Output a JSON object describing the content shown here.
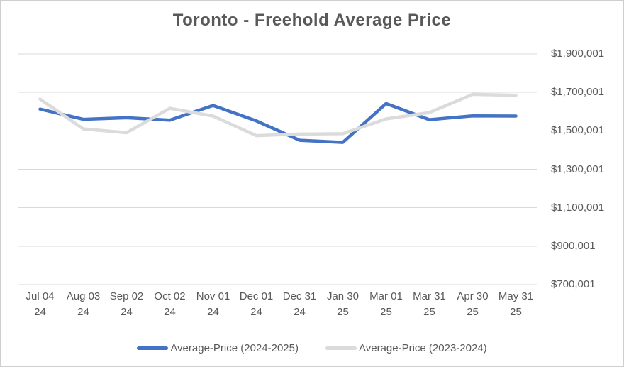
{
  "chart_data": {
    "type": "line",
    "title": "Toronto - Freehold Average Price",
    "categories": [
      "Jul 04 24",
      "Aug 03 24",
      "Sep 02 24",
      "Oct 02 24",
      "Nov 01 24",
      "Dec 01 24",
      "Dec 31 24",
      "Jan 30 25",
      "Mar 01 25",
      "Mar 31 25",
      "Apr 30 25",
      "May 31 25"
    ],
    "series": [
      {
        "name": "Average-Price (2024-2025)",
        "color": "#4472C4",
        "values": [
          1613000,
          1560000,
          1568000,
          1556000,
          1632000,
          1552000,
          1451000,
          1440000,
          1642000,
          1558000,
          1578000,
          1577000
        ]
      },
      {
        "name": "Average-Price (2023-2024)",
        "color": "#DBDBDB",
        "values": [
          1665000,
          1510000,
          1490000,
          1617000,
          1577000,
          1475000,
          1483000,
          1485000,
          1562000,
          1595000,
          1690000,
          1685000
        ]
      }
    ],
    "y_axis": {
      "side": "right",
      "min": 700001,
      "max": 1900001,
      "tick_step": 200000,
      "tick_labels": [
        "$1,900,001",
        "$1,700,001",
        "$1,500,001",
        "$1,300,001",
        "$1,100,001",
        "$900,001",
        "$700,001"
      ],
      "tick_values": [
        1900001,
        1700001,
        1500001,
        1300001,
        1100001,
        900001,
        700001
      ]
    },
    "x_axis": {
      "label_wrap": "year-on-second-line"
    },
    "grid": "horizontal",
    "legend_position": "bottom",
    "colors": {
      "gridline": "#D9D9D9",
      "axis_text": "#595959",
      "title_text": "#595959",
      "background": "#FFFFFF",
      "border": "#CFCFCF"
    }
  }
}
